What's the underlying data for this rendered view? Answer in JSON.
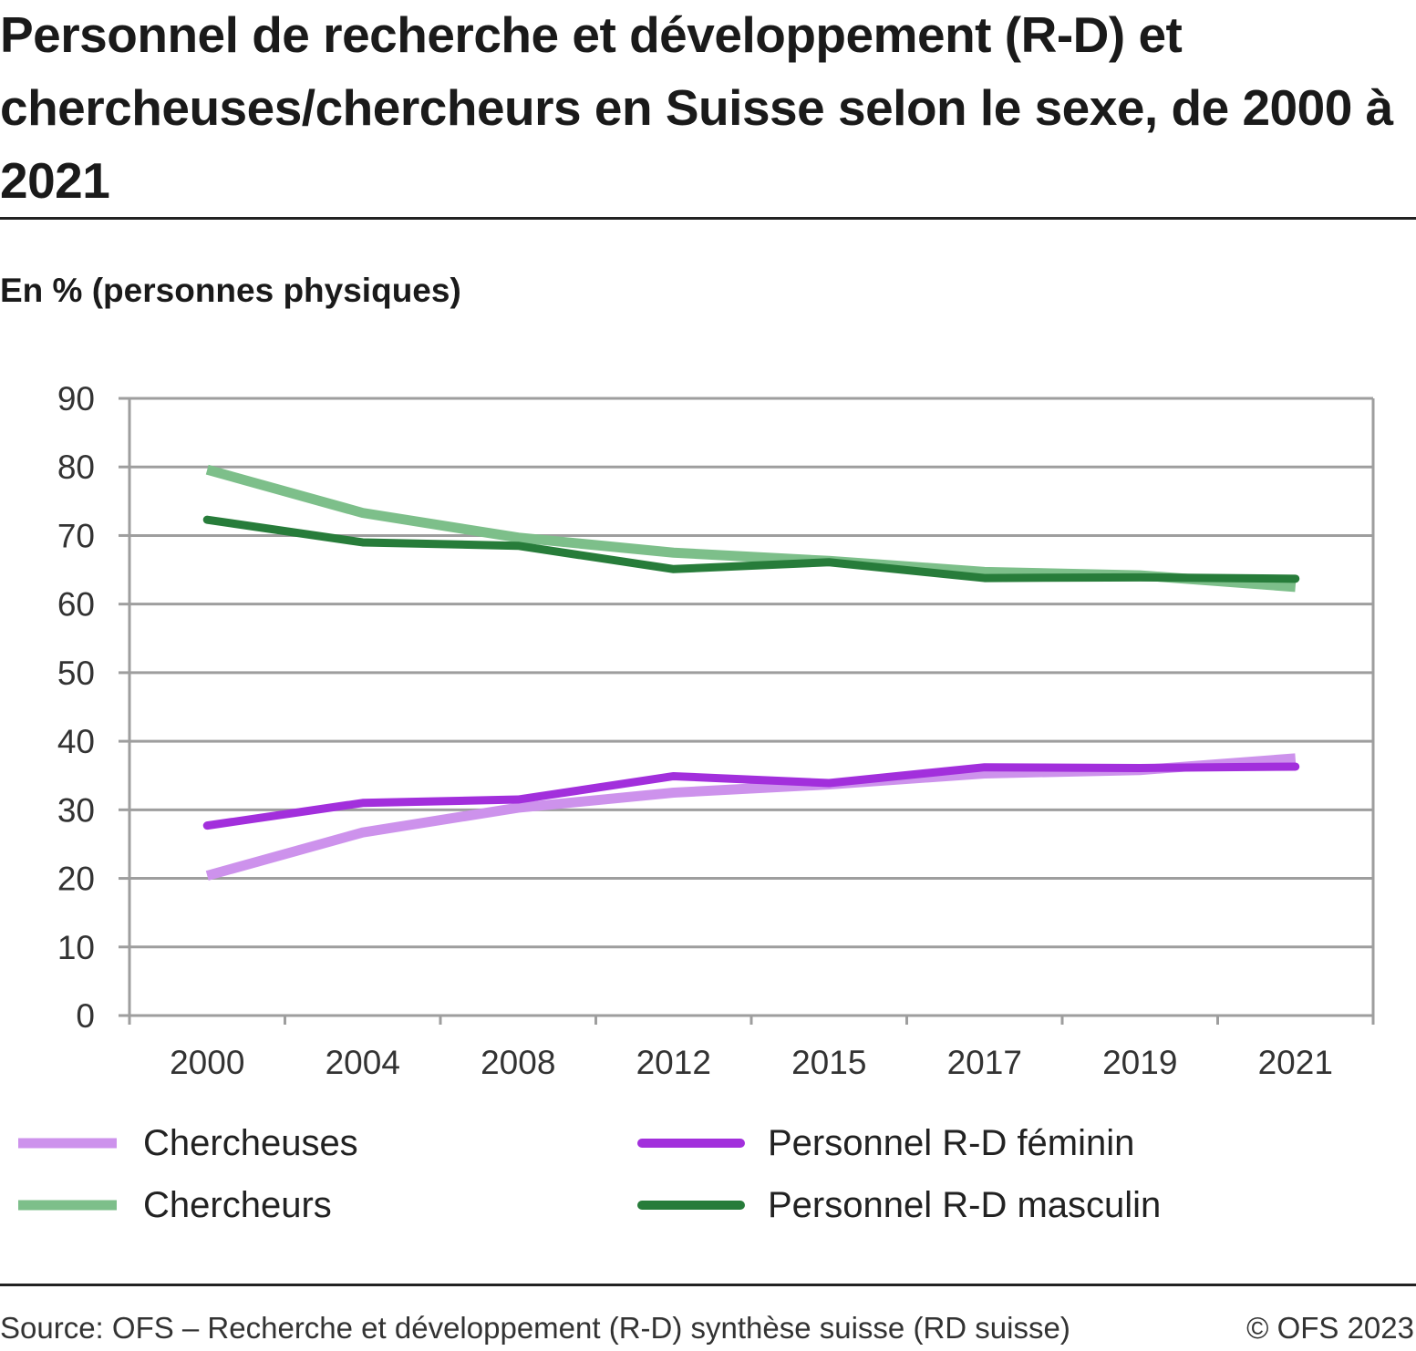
{
  "chart_data": {
    "type": "line",
    "title": "Personnel de recherche et développement (R-D) et chercheuses/chercheurs en Suisse selon le sexe, de 2000 à 2021",
    "subtitle": "En % (personnes physiques)",
    "xlabel": "",
    "ylabel": "",
    "categories": [
      "2000",
      "2004",
      "2008",
      "2012",
      "2015",
      "2017",
      "2019",
      "2021"
    ],
    "ylim": [
      0,
      90
    ],
    "yticks": [
      "0",
      "10",
      "20",
      "30",
      "40",
      "50",
      "60",
      "70",
      "80",
      "90"
    ],
    "grid": true,
    "legend_placement": "bottom",
    "series": [
      {
        "name": "Chercheuses",
        "color": "#cd92ec",
        "values": [
          20.4,
          26.7,
          30.3,
          32.5,
          33.7,
          35.3,
          35.8,
          37.5
        ]
      },
      {
        "name": "Chercheurs",
        "color": "#7dbf8a",
        "values": [
          79.6,
          73.3,
          69.7,
          67.5,
          66.3,
          64.7,
          64.2,
          62.5
        ]
      },
      {
        "name": "Personnel R-D féminin",
        "color": "#a22fdc",
        "values": [
          27.7,
          31.0,
          31.5,
          34.9,
          33.9,
          36.2,
          36.1,
          36.3
        ]
      },
      {
        "name": "Personnel R-D masculin",
        "color": "#277c3a",
        "values": [
          72.3,
          69.0,
          68.5,
          65.1,
          66.1,
          63.8,
          63.9,
          63.7
        ]
      }
    ],
    "source": "Source: OFS – Recherche et développement (R-D) synthèse suisse (RD suisse)",
    "copyright": "© OFS 2023"
  }
}
